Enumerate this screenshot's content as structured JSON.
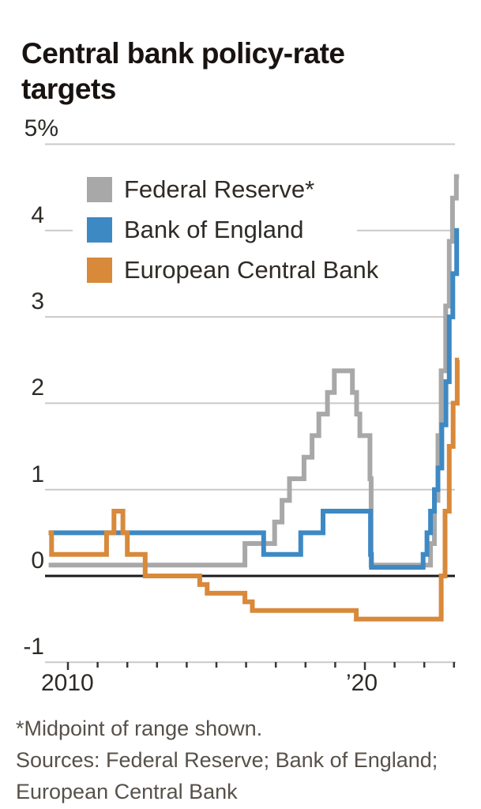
{
  "header": {
    "title": "Central bank policy-rate targets"
  },
  "chart_data": {
    "type": "line",
    "title": "Central bank policy-rate targets",
    "line_style": "step-after",
    "grid": true,
    "legend_position": "upper-left-inside",
    "y_axis": {
      "label": "%",
      "min": -1,
      "max": 5,
      "ticks": [
        5,
        4,
        3,
        2,
        1,
        0,
        -1
      ],
      "tick_labels": [
        "5%",
        "4",
        "3",
        "2",
        "1",
        "0",
        "-1"
      ]
    },
    "x_axis": {
      "range": [
        2009.35,
        2023.17
      ],
      "tick_years": [
        2010,
        2011,
        2012,
        2013,
        2014,
        2015,
        2016,
        2017,
        2018,
        2019,
        2020,
        2021,
        2022,
        2023
      ],
      "labeled_years": [
        2010,
        2020
      ],
      "labels": [
        "2010",
        "’20"
      ]
    },
    "series": [
      {
        "id": "fed",
        "name": "Federal Reserve*",
        "color": "#a8a8a8",
        "unit": "percent",
        "points": [
          [
            2009.35,
            0.125
          ],
          [
            2015.96,
            0.375
          ],
          [
            2016.96,
            0.625
          ],
          [
            2017.21,
            0.875
          ],
          [
            2017.46,
            1.125
          ],
          [
            2017.95,
            1.375
          ],
          [
            2018.22,
            1.625
          ],
          [
            2018.45,
            1.875
          ],
          [
            2018.74,
            2.125
          ],
          [
            2018.97,
            2.375
          ],
          [
            2019.58,
            2.125
          ],
          [
            2019.72,
            1.875
          ],
          [
            2019.83,
            1.625
          ],
          [
            2020.17,
            1.125
          ],
          [
            2020.21,
            0.125
          ],
          [
            2022.21,
            0.375
          ],
          [
            2022.34,
            0.875
          ],
          [
            2022.46,
            1.625
          ],
          [
            2022.57,
            2.375
          ],
          [
            2022.72,
            3.125
          ],
          [
            2022.84,
            3.875
          ],
          [
            2022.95,
            4.375
          ],
          [
            2023.08,
            4.625
          ]
        ]
      },
      {
        "id": "boe",
        "name": "Bank of England",
        "color": "#3d89c4",
        "unit": "percent",
        "points": [
          [
            2009.35,
            0.5
          ],
          [
            2016.59,
            0.25
          ],
          [
            2017.84,
            0.5
          ],
          [
            2018.59,
            0.75
          ],
          [
            2020.19,
            0.25
          ],
          [
            2020.22,
            0.1
          ],
          [
            2021.96,
            0.25
          ],
          [
            2022.09,
            0.5
          ],
          [
            2022.21,
            0.75
          ],
          [
            2022.34,
            1.0
          ],
          [
            2022.46,
            1.25
          ],
          [
            2022.59,
            1.75
          ],
          [
            2022.73,
            2.25
          ],
          [
            2022.84,
            3.0
          ],
          [
            2022.96,
            3.5
          ],
          [
            2023.09,
            4.0
          ]
        ]
      },
      {
        "id": "ecb",
        "name": "European Central Bank",
        "color": "#d8893a",
        "unit": "percent",
        "points": [
          [
            2009.35,
            0.5
          ],
          [
            2009.45,
            0.25
          ],
          [
            2011.3,
            0.5
          ],
          [
            2011.55,
            0.75
          ],
          [
            2011.85,
            0.5
          ],
          [
            2012.0,
            0.25
          ],
          [
            2012.6,
            0.0
          ],
          [
            2014.44,
            -0.1
          ],
          [
            2014.69,
            -0.2
          ],
          [
            2015.96,
            -0.3
          ],
          [
            2016.21,
            -0.4
          ],
          [
            2019.71,
            -0.5
          ],
          [
            2022.57,
            0.0
          ],
          [
            2022.7,
            0.75
          ],
          [
            2022.84,
            1.5
          ],
          [
            2022.97,
            2.0
          ],
          [
            2023.11,
            2.5
          ]
        ]
      }
    ]
  },
  "notes": {
    "footnote": "*Midpoint of range shown.",
    "sources_line1": "Sources: Federal Reserve; Bank of England;",
    "sources_line2": "European Central Bank"
  }
}
